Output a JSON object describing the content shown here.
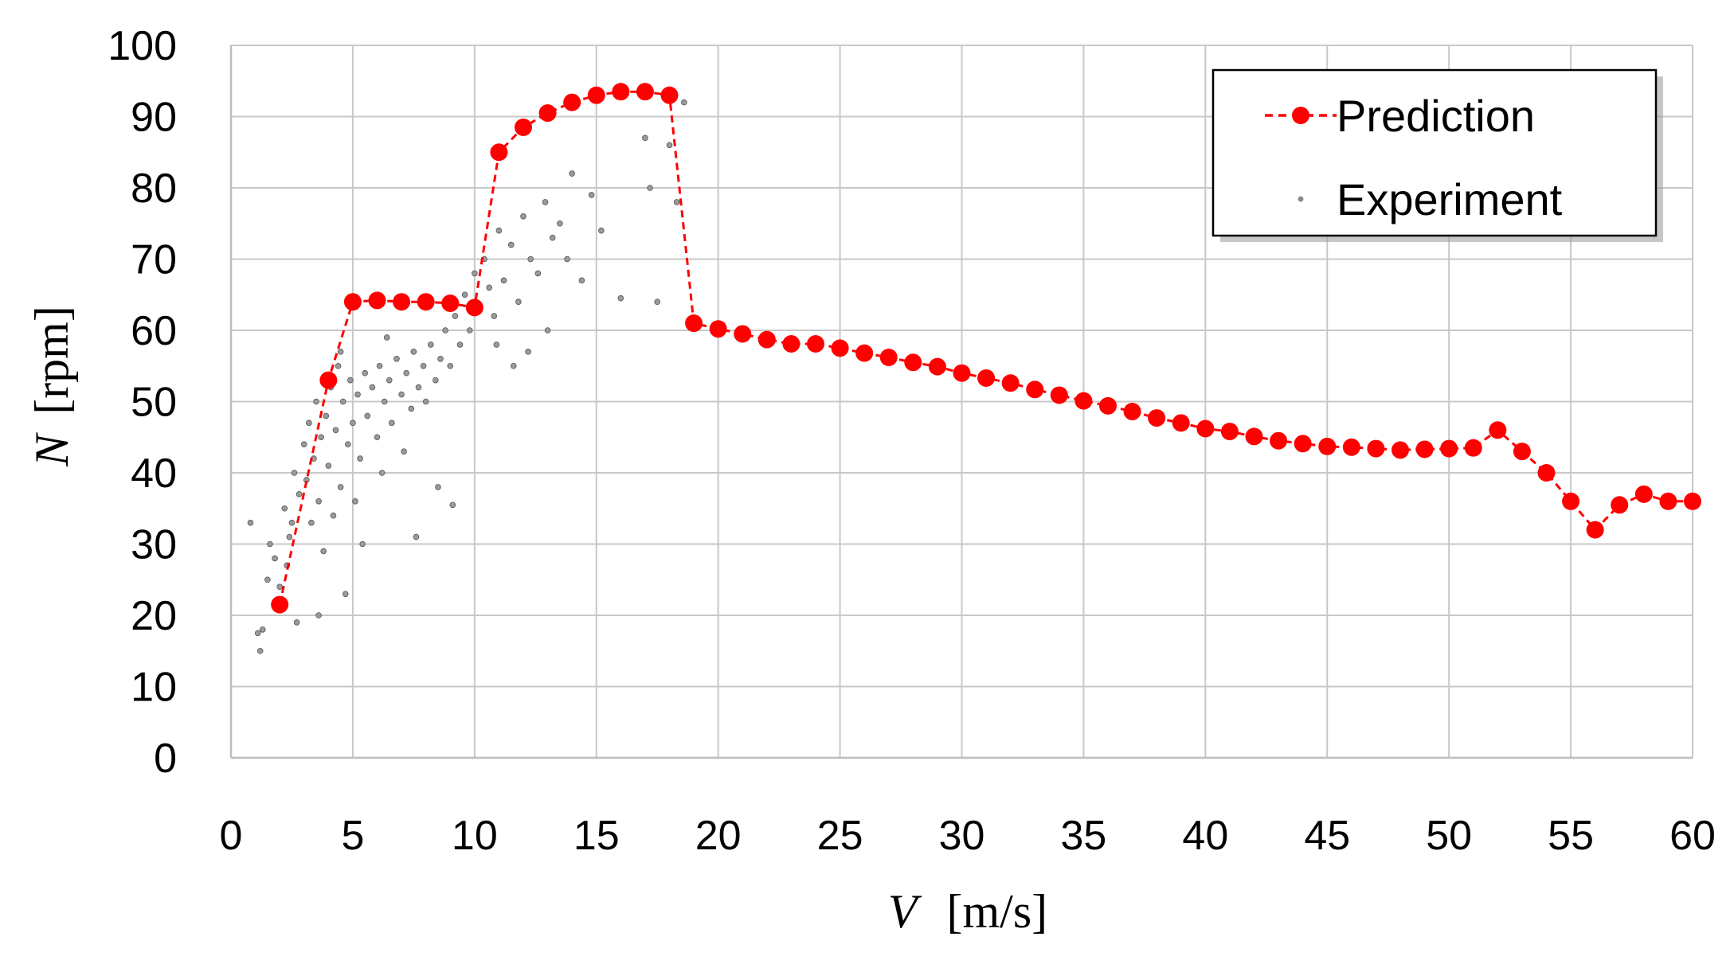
{
  "chart_data": {
    "type": "line",
    "title": "",
    "xlabel": {
      "var": "V",
      "unit": "[m/s]"
    },
    "ylabel": {
      "var": "N",
      "unit": "[rpm]"
    },
    "xlim": [
      0,
      60
    ],
    "ylim": [
      0,
      100
    ],
    "xticks": [
      0,
      5,
      10,
      15,
      20,
      25,
      30,
      35,
      40,
      45,
      50,
      55,
      60
    ],
    "yticks": [
      0,
      10,
      20,
      30,
      40,
      50,
      60,
      70,
      80,
      90,
      100
    ],
    "grid": true,
    "legend_position": "top-right",
    "series": [
      {
        "name": "Prediction",
        "style": "dashed line with filled circle markers",
        "color": "#ff0000",
        "points": [
          [
            2,
            21.5
          ],
          [
            4,
            53
          ],
          [
            5,
            64
          ],
          [
            6,
            64.2
          ],
          [
            7,
            64
          ],
          [
            8,
            64
          ],
          [
            9,
            63.8
          ],
          [
            10,
            63.2
          ],
          [
            11,
            85
          ],
          [
            12,
            88.5
          ],
          [
            13,
            90.5
          ],
          [
            14,
            92
          ],
          [
            15,
            93
          ],
          [
            16,
            93.5
          ],
          [
            17,
            93.5
          ],
          [
            18,
            93
          ],
          [
            19,
            61
          ],
          [
            20,
            60.2
          ],
          [
            21,
            59.5
          ],
          [
            22,
            58.7
          ],
          [
            23,
            58.1
          ],
          [
            24,
            58.1
          ],
          [
            25,
            57.5
          ],
          [
            26,
            56.8
          ],
          [
            27,
            56.2
          ],
          [
            28,
            55.5
          ],
          [
            29,
            54.9
          ],
          [
            30,
            54
          ],
          [
            31,
            53.3
          ],
          [
            32,
            52.6
          ],
          [
            33,
            51.7
          ],
          [
            34,
            50.9
          ],
          [
            35,
            50.1
          ],
          [
            36,
            49.4
          ],
          [
            37,
            48.6
          ],
          [
            38,
            47.7
          ],
          [
            39,
            47
          ],
          [
            40,
            46.2
          ],
          [
            41,
            45.8
          ],
          [
            42,
            45.1
          ],
          [
            43,
            44.5
          ],
          [
            44,
            44.1
          ],
          [
            45,
            43.7
          ],
          [
            46,
            43.6
          ],
          [
            47,
            43.4
          ],
          [
            48,
            43.2
          ],
          [
            49,
            43.3
          ],
          [
            50,
            43.4
          ],
          [
            51,
            43.5
          ],
          [
            52,
            46
          ],
          [
            53,
            43
          ],
          [
            54,
            40
          ],
          [
            55,
            36
          ],
          [
            56,
            32
          ],
          [
            57,
            35.5
          ],
          [
            58,
            37
          ],
          [
            59,
            36
          ],
          [
            60,
            36
          ]
        ]
      },
      {
        "name": "Experiment",
        "style": "small gray scatter dots",
        "color": "#7f7f7f",
        "points": [
          [
            0.8,
            33
          ],
          [
            1.1,
            17.5
          ],
          [
            1.2,
            15
          ],
          [
            1.3,
            18
          ],
          [
            1.5,
            25
          ],
          [
            1.6,
            30
          ],
          [
            1.8,
            28
          ],
          [
            2.0,
            24
          ],
          [
            2.2,
            35
          ],
          [
            2.3,
            27
          ],
          [
            2.5,
            33
          ],
          [
            2.6,
            40
          ],
          [
            2.8,
            37
          ],
          [
            3.0,
            44
          ],
          [
            3.1,
            39
          ],
          [
            3.2,
            47
          ],
          [
            3.4,
            42
          ],
          [
            3.5,
            50
          ],
          [
            3.6,
            36
          ],
          [
            3.7,
            45
          ],
          [
            3.9,
            48
          ],
          [
            4.0,
            41
          ],
          [
            4.1,
            52
          ],
          [
            4.3,
            46
          ],
          [
            4.4,
            55
          ],
          [
            4.5,
            38
          ],
          [
            4.6,
            50
          ],
          [
            4.8,
            44
          ],
          [
            4.9,
            53
          ],
          [
            5.0,
            47
          ],
          [
            5.2,
            51
          ],
          [
            5.3,
            42
          ],
          [
            5.5,
            54
          ],
          [
            5.6,
            48
          ],
          [
            5.8,
            52
          ],
          [
            6.0,
            45
          ],
          [
            6.1,
            55
          ],
          [
            6.3,
            50
          ],
          [
            6.5,
            53
          ],
          [
            6.6,
            47
          ],
          [
            6.8,
            56
          ],
          [
            7.0,
            51
          ],
          [
            7.2,
            54
          ],
          [
            7.4,
            49
          ],
          [
            7.5,
            57
          ],
          [
            7.7,
            52
          ],
          [
            7.9,
            55
          ],
          [
            8.0,
            50
          ],
          [
            8.2,
            58
          ],
          [
            8.4,
            53
          ],
          [
            8.6,
            56
          ],
          [
            8.8,
            60
          ],
          [
            9.0,
            55
          ],
          [
            9.2,
            62
          ],
          [
            9.4,
            58
          ],
          [
            9.6,
            65
          ],
          [
            9.8,
            60
          ],
          [
            10.0,
            68
          ],
          [
            10.2,
            63
          ],
          [
            10.4,
            70
          ],
          [
            10.6,
            66
          ],
          [
            10.8,
            62
          ],
          [
            11.0,
            74
          ],
          [
            11.2,
            67
          ],
          [
            11.5,
            72
          ],
          [
            11.8,
            64
          ],
          [
            12.0,
            76
          ],
          [
            12.3,
            70
          ],
          [
            12.6,
            68
          ],
          [
            12.9,
            78
          ],
          [
            13.2,
            73
          ],
          [
            13.5,
            75
          ],
          [
            13.8,
            70
          ],
          [
            14.0,
            82
          ],
          [
            14.4,
            67
          ],
          [
            14.8,
            79
          ],
          [
            15.2,
            74
          ],
          [
            16.0,
            64.5
          ],
          [
            17.0,
            87
          ],
          [
            17.2,
            80
          ],
          [
            17.5,
            64
          ],
          [
            18.0,
            86
          ],
          [
            18.3,
            78
          ],
          [
            18.6,
            92
          ],
          [
            3.3,
            33
          ],
          [
            4.2,
            34
          ],
          [
            5.1,
            36
          ],
          [
            5.4,
            30
          ],
          [
            6.2,
            40
          ],
          [
            7.1,
            43
          ],
          [
            7.6,
            31
          ],
          [
            8.5,
            38
          ],
          [
            9.1,
            35.5
          ],
          [
            2.7,
            19
          ],
          [
            3.6,
            20
          ],
          [
            4.7,
            23
          ],
          [
            1.9,
            21
          ],
          [
            2.4,
            31
          ],
          [
            3.8,
            29
          ],
          [
            4.5,
            57
          ],
          [
            6.4,
            59
          ],
          [
            10.9,
            58
          ],
          [
            11.6,
            55
          ],
          [
            12.2,
            57
          ],
          [
            13.0,
            60
          ]
        ]
      }
    ]
  }
}
